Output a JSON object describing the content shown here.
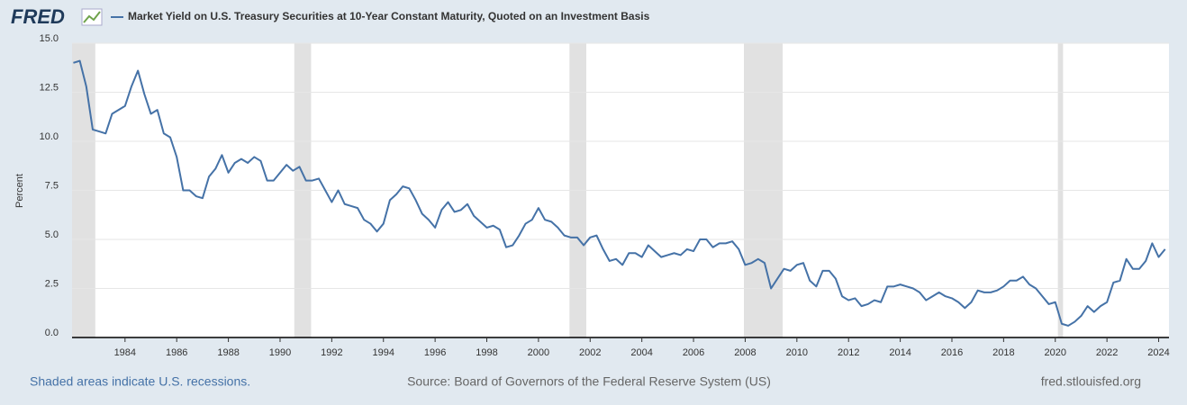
{
  "chart_data": {
    "type": "line",
    "logo": "FRED",
    "title": "Market Yield on U.S. Treasury Securities at 10-Year Constant Maturity, Quoted on an Investment Basis",
    "y_label": "Percent",
    "recession_note": "Shaded areas indicate U.S. recessions.",
    "source": "Source: Board of Governors of the Federal Reserve System (US)",
    "site": "fred.stlouisfed.org",
    "xlim": [
      1981.95,
      2024.4
    ],
    "ylim": [
      0,
      15
    ],
    "xticks": [
      1984,
      1986,
      1988,
      1990,
      1992,
      1994,
      1996,
      1998,
      2000,
      2002,
      2004,
      2006,
      2008,
      2010,
      2012,
      2014,
      2016,
      2018,
      2020,
      2022,
      2024
    ],
    "yticks": [
      {
        "value": 0,
        "label": "0.0"
      },
      2.5,
      {
        "value": 5,
        "label": "5.0"
      },
      7.5,
      {
        "value": 10,
        "label": "10.0"
      },
      12.5,
      {
        "value": 15,
        "label": "15.0"
      }
    ],
    "grid": true,
    "recessions": [
      [
        1981.95,
        1982.85
      ],
      [
        1990.55,
        1991.2
      ],
      [
        2001.2,
        2001.85
      ],
      [
        2007.95,
        2009.45
      ],
      [
        2020.1,
        2020.3
      ]
    ],
    "recession_color": "#e1e1e1",
    "x": [
      1982,
      1982.25,
      1982.5,
      1982.75,
      1983,
      1983.25,
      1983.5,
      1983.75,
      1984,
      1984.25,
      1984.5,
      1984.75,
      1985,
      1985.25,
      1985.5,
      1985.75,
      1986,
      1986.25,
      1986.5,
      1986.75,
      1987,
      1987.25,
      1987.5,
      1987.75,
      1988,
      1988.25,
      1988.5,
      1988.75,
      1989,
      1989.25,
      1989.5,
      1989.75,
      1990,
      1990.25,
      1990.5,
      1990.75,
      1991,
      1991.25,
      1991.5,
      1991.75,
      1992,
      1992.25,
      1992.5,
      1992.75,
      1993,
      1993.25,
      1993.5,
      1993.75,
      1994,
      1994.25,
      1994.5,
      1994.75,
      1995,
      1995.25,
      1995.5,
      1995.75,
      1996,
      1996.25,
      1996.5,
      1996.75,
      1997,
      1997.25,
      1997.5,
      1997.75,
      1998,
      1998.25,
      1998.5,
      1998.75,
      1999,
      1999.25,
      1999.5,
      1999.75,
      2000,
      2000.25,
      2000.5,
      2000.75,
      2001,
      2001.25,
      2001.5,
      2001.75,
      2002,
      2002.25,
      2002.5,
      2002.75,
      2003,
      2003.25,
      2003.5,
      2003.75,
      2004,
      2004.25,
      2004.5,
      2004.75,
      2005,
      2005.25,
      2005.5,
      2005.75,
      2006,
      2006.25,
      2006.5,
      2006.75,
      2007,
      2007.25,
      2007.5,
      2007.75,
      2008,
      2008.25,
      2008.5,
      2008.75,
      2009,
      2009.25,
      2009.5,
      2009.75,
      2010,
      2010.25,
      2010.5,
      2010.75,
      2011,
      2011.25,
      2011.5,
      2011.75,
      2012,
      2012.25,
      2012.5,
      2012.75,
      2013,
      2013.25,
      2013.5,
      2013.75,
      2014,
      2014.25,
      2014.5,
      2014.75,
      2015,
      2015.25,
      2015.5,
      2015.75,
      2016,
      2016.25,
      2016.5,
      2016.75,
      2017,
      2017.25,
      2017.5,
      2017.75,
      2018,
      2018.25,
      2018.5,
      2018.75,
      2019,
      2019.25,
      2019.5,
      2019.75,
      2020,
      2020.25,
      2020.5,
      2020.75,
      2021,
      2021.25,
      2021.5,
      2021.75,
      2022,
      2022.25,
      2022.5,
      2022.75,
      2023,
      2023.25,
      2023.5,
      2023.75,
      2024,
      2024.25
    ],
    "series": [
      {
        "name": "Market Yield on U.S. Treasury Securities at 10-Year Constant Maturity, Quoted on an Investment Basis",
        "color": "#4572a7",
        "values": [
          14.0,
          14.1,
          12.8,
          10.6,
          10.5,
          10.4,
          11.4,
          11.6,
          11.8,
          12.8,
          13.6,
          12.4,
          11.4,
          11.6,
          10.4,
          10.2,
          9.2,
          7.5,
          7.5,
          7.2,
          7.1,
          8.2,
          8.6,
          9.3,
          8.4,
          8.9,
          9.1,
          8.9,
          9.2,
          9.0,
          8.0,
          8.0,
          8.4,
          8.8,
          8.5,
          8.7,
          8.0,
          8.0,
          8.1,
          7.5,
          6.9,
          7.5,
          6.8,
          6.7,
          6.6,
          6.0,
          5.8,
          5.4,
          5.8,
          7.0,
          7.3,
          7.7,
          7.6,
          7.0,
          6.3,
          6.0,
          5.6,
          6.5,
          6.9,
          6.4,
          6.5,
          6.8,
          6.2,
          5.9,
          5.6,
          5.7,
          5.5,
          4.6,
          4.7,
          5.2,
          5.8,
          6.0,
          6.6,
          6.0,
          5.9,
          5.6,
          5.2,
          5.1,
          5.1,
          4.7,
          5.1,
          5.2,
          4.5,
          3.9,
          4.0,
          3.7,
          4.3,
          4.3,
          4.1,
          4.7,
          4.4,
          4.1,
          4.2,
          4.3,
          4.2,
          4.5,
          4.4,
          5.0,
          5.0,
          4.6,
          4.8,
          4.8,
          4.9,
          4.5,
          3.7,
          3.8,
          4.0,
          3.8,
          2.5,
          3.0,
          3.5,
          3.4,
          3.7,
          3.8,
          2.9,
          2.6,
          3.4,
          3.4,
          3.0,
          2.1,
          1.9,
          2.0,
          1.6,
          1.7,
          1.9,
          1.8,
          2.6,
          2.6,
          2.7,
          2.6,
          2.5,
          2.3,
          1.9,
          2.1,
          2.3,
          2.1,
          2.0,
          1.8,
          1.5,
          1.8,
          2.4,
          2.3,
          2.3,
          2.4,
          2.6,
          2.9,
          2.9,
          3.1,
          2.7,
          2.5,
          2.1,
          1.7,
          1.8,
          0.7,
          0.6,
          0.8,
          1.1,
          1.6,
          1.3,
          1.6,
          1.8,
          2.8,
          2.9,
          4.0,
          3.5,
          3.5,
          3.9,
          4.8,
          4.1,
          4.5
        ]
      }
    ]
  }
}
